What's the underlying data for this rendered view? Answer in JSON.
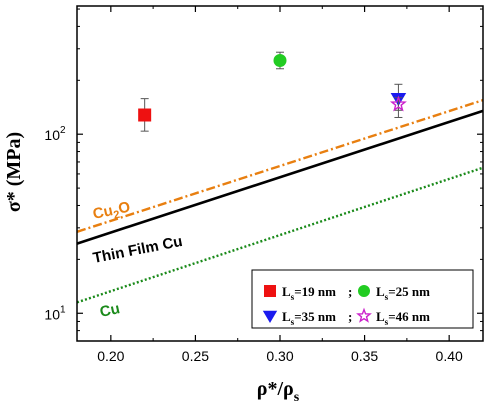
{
  "chart_data": {
    "type": "scatter",
    "xlabel": "ρ*/ρ",
    "xlabel_sub": "s",
    "ylabel": "σ* (MPa)",
    "xlim": [
      0.18,
      0.42
    ],
    "ylim": [
      7,
      520
    ],
    "yscale": "log",
    "grid": false,
    "x_ticks": [
      0.2,
      0.25,
      0.3,
      0.35,
      0.4
    ],
    "x_tick_labels": [
      "0.20",
      "0.25",
      "0.30",
      "0.35",
      "0.40"
    ],
    "y_ticks": [
      10,
      100
    ],
    "y_tick_base": "10",
    "y_tick_exps": [
      "1",
      "2"
    ],
    "legend_position": "bottom-right",
    "series": [
      {
        "name": "Ls=19 nm",
        "legend_main": "L",
        "legend_sub": "s",
        "legend_rest": "=19 nm",
        "separator": ";",
        "marker": "square",
        "color": "#ee1111",
        "filled": true,
        "points": [
          {
            "x": 0.22,
            "y": 128,
            "yerr_low": 104,
            "yerr_high": 158
          }
        ]
      },
      {
        "name": "Ls=25 nm",
        "legend_main": "L",
        "legend_sub": "s",
        "legend_rest": "=25 nm",
        "separator": "",
        "marker": "circle",
        "color": "#22cc22",
        "filled": true,
        "points": [
          {
            "x": 0.3,
            "y": 258,
            "yerr_low": 232,
            "yerr_high": 287
          }
        ]
      },
      {
        "name": "Ls=35 nm",
        "legend_main": "L",
        "legend_sub": "s",
        "legend_rest": "=35 nm",
        "separator": ";",
        "marker": "triangle-down",
        "color": "#1a1aee",
        "filled": true,
        "points": [
          {
            "x": 0.37,
            "y": 158,
            "yerr_low": 124,
            "yerr_high": 190
          }
        ]
      },
      {
        "name": "Ls=46 nm",
        "legend_main": "L",
        "legend_sub": "s",
        "legend_rest": "=46 nm",
        "separator": "",
        "marker": "star",
        "color": "#cc22cc",
        "filled": false,
        "points": [
          {
            "x": 0.37,
            "y": 147,
            "yerr_low": 136,
            "yerr_high": 160
          }
        ]
      }
    ],
    "lines": [
      {
        "name": "Cu2O",
        "label_main": "Cu",
        "label_sub": "2",
        "label_rest": "O",
        "color": "#e87f10",
        "style": "dashdot",
        "points": [
          {
            "x": 0.18,
            "y": 28.5
          },
          {
            "x": 0.42,
            "y": 155
          }
        ]
      },
      {
        "name": "Thin Film Cu",
        "label_main": "Thin Film Cu",
        "label_sub": "",
        "label_rest": "",
        "color": "#000000",
        "style": "solid",
        "points": [
          {
            "x": 0.18,
            "y": 24.5
          },
          {
            "x": 0.42,
            "y": 135
          }
        ]
      },
      {
        "name": "Cu",
        "label_main": "Cu",
        "label_sub": "",
        "label_rest": "",
        "color": "#1a8a1a",
        "style": "dotted",
        "points": [
          {
            "x": 0.18,
            "y": 11.5
          },
          {
            "x": 0.42,
            "y": 65
          }
        ]
      }
    ]
  }
}
